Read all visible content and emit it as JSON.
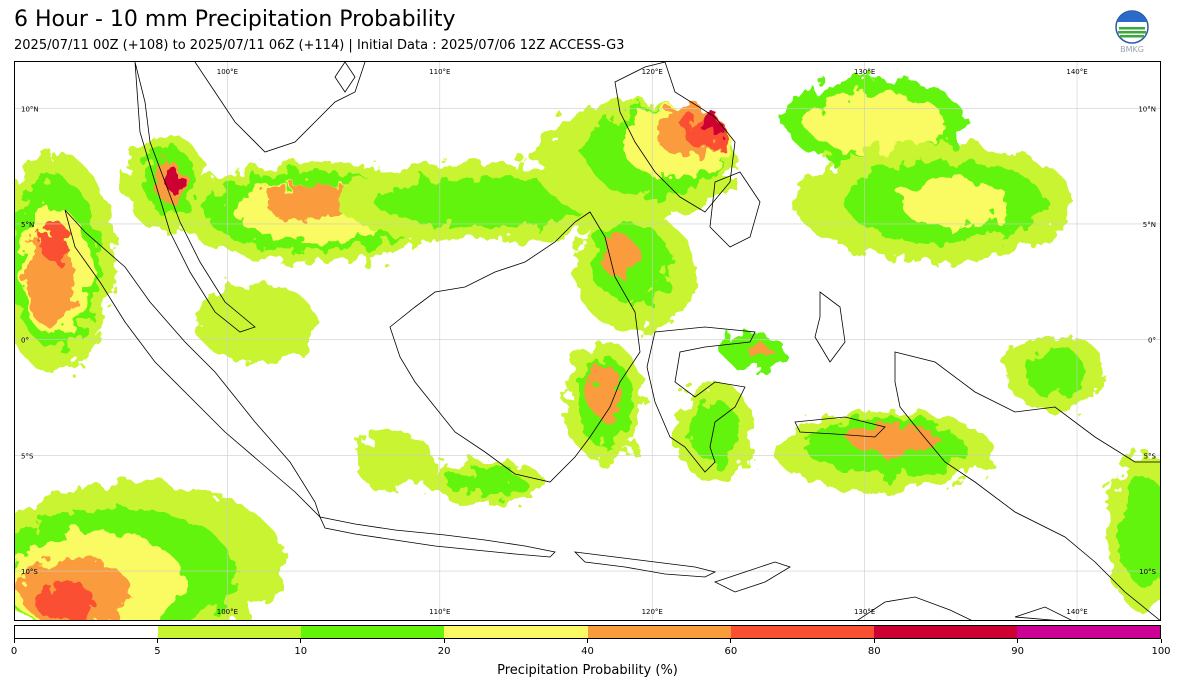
{
  "header": {
    "title": "6 Hour - 10 mm Precipitation Probability",
    "subtitle": "2025/07/11 00Z (+108) to 2025/07/11 06Z (+114) | Initial Data : 2025/07/06 12Z ACCESS-G3"
  },
  "logo": {
    "icon": "bmkg-logo-icon",
    "text": "BMKG"
  },
  "map": {
    "region": "Indonesia",
    "lon_range": [
      90,
      144
    ],
    "lat_range": [
      -12.2,
      12
    ],
    "lon_labels_top": [
      {
        "lon": 100,
        "label": "100°E"
      },
      {
        "lon": 110,
        "label": "110°E"
      },
      {
        "lon": 120,
        "label": "120°E"
      },
      {
        "lon": 130,
        "label": "130°E"
      },
      {
        "lon": 140,
        "label": "140°E"
      }
    ],
    "lon_labels_bottom": [
      {
        "lon": 100,
        "label": "100°E"
      },
      {
        "lon": 110,
        "label": "110°E"
      },
      {
        "lon": 120,
        "label": "120°E"
      },
      {
        "lon": 130,
        "label": "130°E"
      },
      {
        "lon": 140,
        "label": "140°E"
      }
    ],
    "lat_labels_left": [
      {
        "lat": 10,
        "label": "10°N"
      },
      {
        "lat": 5,
        "label": "5°N"
      },
      {
        "lat": 0,
        "label": "0°"
      },
      {
        "lat": -5,
        "label": "5°S"
      },
      {
        "lat": -10,
        "label": "10°S"
      }
    ],
    "lat_labels_right": [
      {
        "lat": 10,
        "label": "10°N"
      },
      {
        "lat": 5,
        "label": "5°N"
      },
      {
        "lat": 0,
        "label": "0°"
      },
      {
        "lat": -5,
        "label": "5°S"
      },
      {
        "lat": -10,
        "label": "10°S"
      }
    ]
  },
  "colorbar": {
    "title": "Precipitation Probability (%)",
    "bins": [
      {
        "from": 0,
        "to": 5,
        "color": "#ffffff"
      },
      {
        "from": 5,
        "to": 10,
        "color": "#c8f432"
      },
      {
        "from": 10,
        "to": 20,
        "color": "#64f40a"
      },
      {
        "from": 20,
        "to": 40,
        "color": "#fafa64"
      },
      {
        "from": 40,
        "to": 60,
        "color": "#fa9b3c"
      },
      {
        "from": 60,
        "to": 80,
        "color": "#fa5032"
      },
      {
        "from": 80,
        "to": 90,
        "color": "#cd0032"
      },
      {
        "from": 90,
        "to": 100,
        "color": "#cd0096"
      }
    ],
    "tick_labels": [
      "0",
      "5",
      "10",
      "20",
      "40",
      "60",
      "80",
      "90",
      "100"
    ]
  }
}
